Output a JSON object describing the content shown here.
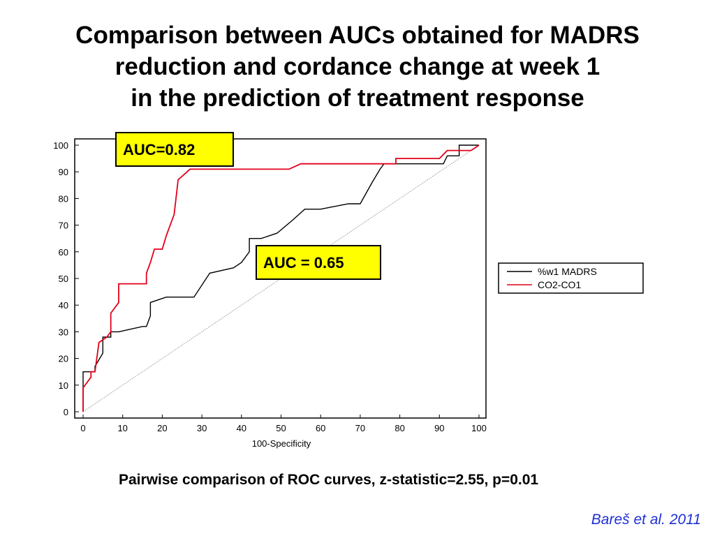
{
  "title": "Comparison between AUCs obtained for MADRS\nreduction and cordance change at week 1\nin the prediction of treatment response",
  "footer": "Pairwise comparison of ROC curves, z-statistic=2.55, p=0.01",
  "citation": "Bareš et al. 2011",
  "colors": {
    "madrs": "#000000",
    "cordance": "#e2001a",
    "auc_box_fill": "#ffff00",
    "citation": "#1f2fd6"
  },
  "chart_data": {
    "type": "line",
    "xlabel": "100-Specificity",
    "ylabel": "",
    "xlim": [
      0,
      100
    ],
    "ylim": [
      0,
      100
    ],
    "xticks": [
      0,
      10,
      20,
      30,
      40,
      50,
      60,
      70,
      80,
      90,
      100
    ],
    "yticks": [
      0,
      10,
      20,
      30,
      40,
      50,
      60,
      70,
      80,
      90,
      100
    ],
    "grid": false,
    "legend": "right",
    "annotations": [
      "AUC=0.82",
      "AUC = 0.65"
    ],
    "series": [
      {
        "name": "%w1 MADRS",
        "color": "#000000",
        "points": [
          [
            0,
            0
          ],
          [
            0,
            15
          ],
          [
            3,
            15
          ],
          [
            3,
            17
          ],
          [
            5,
            22
          ],
          [
            5,
            28
          ],
          [
            7,
            28
          ],
          [
            7,
            30
          ],
          [
            9,
            30
          ],
          [
            15,
            32
          ],
          [
            16,
            32
          ],
          [
            17,
            36
          ],
          [
            17,
            41
          ],
          [
            21,
            43
          ],
          [
            28,
            43
          ],
          [
            32,
            52
          ],
          [
            38,
            54
          ],
          [
            40,
            56
          ],
          [
            42,
            60
          ],
          [
            42,
            65
          ],
          [
            45,
            65
          ],
          [
            49,
            67
          ],
          [
            53,
            72
          ],
          [
            56,
            76
          ],
          [
            60,
            76
          ],
          [
            67,
            78
          ],
          [
            70,
            78
          ],
          [
            73,
            86
          ],
          [
            75,
            91
          ],
          [
            76,
            93
          ],
          [
            91,
            93
          ],
          [
            92,
            96
          ],
          [
            95,
            96
          ],
          [
            95,
            100
          ],
          [
            100,
            100
          ]
        ]
      },
      {
        "name": "CO2-CO1",
        "color": "#e2001a",
        "points": [
          [
            0,
            0
          ],
          [
            0,
            9
          ],
          [
            1,
            11
          ],
          [
            2,
            13
          ],
          [
            2,
            15
          ],
          [
            3,
            15
          ],
          [
            4,
            26
          ],
          [
            6,
            28
          ],
          [
            7,
            30
          ],
          [
            7,
            37
          ],
          [
            8,
            39
          ],
          [
            9,
            41
          ],
          [
            9,
            48
          ],
          [
            16,
            48
          ],
          [
            16,
            52
          ],
          [
            17,
            56
          ],
          [
            18,
            61
          ],
          [
            20,
            61
          ],
          [
            21,
            66
          ],
          [
            22,
            70
          ],
          [
            23,
            74
          ],
          [
            24,
            87
          ],
          [
            27,
            91
          ],
          [
            52,
            91
          ],
          [
            55,
            93
          ],
          [
            73,
            93
          ],
          [
            79,
            93
          ],
          [
            79,
            95
          ],
          [
            90,
            95
          ],
          [
            92,
            98
          ],
          [
            98,
            98
          ],
          [
            100,
            100
          ]
        ]
      },
      {
        "name": "reference",
        "color": "#808080",
        "points": [
          [
            0,
            0
          ],
          [
            100,
            100
          ]
        ]
      }
    ]
  }
}
